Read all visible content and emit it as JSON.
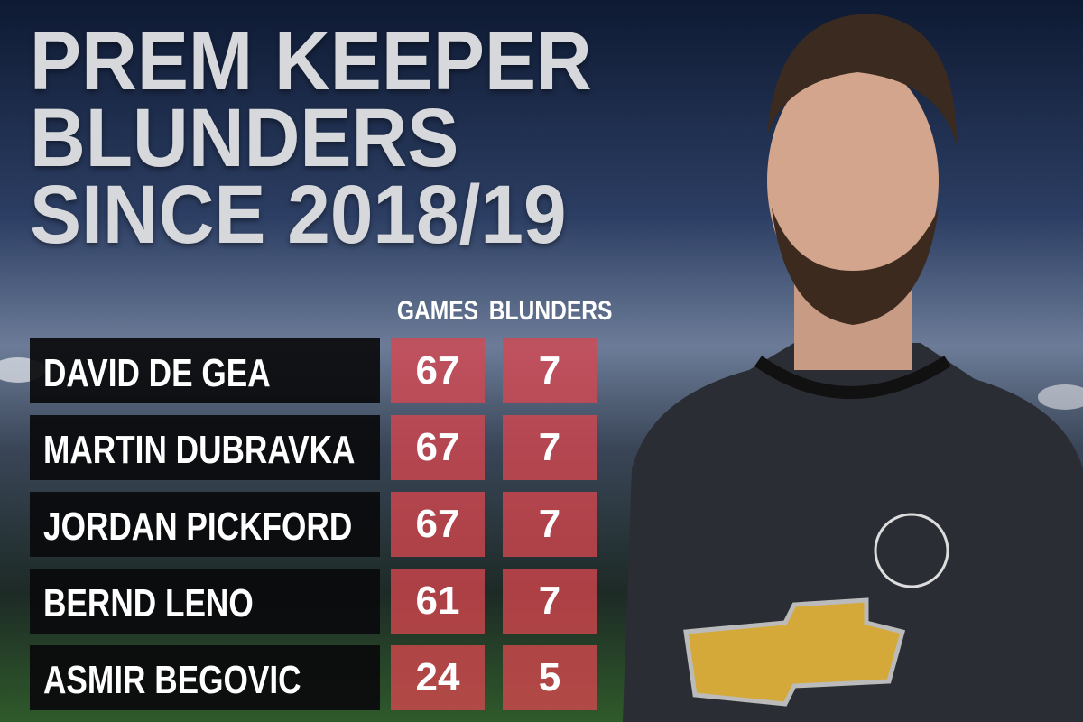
{
  "title": {
    "lines": [
      "PREM KEEPER",
      "BLUNDERS",
      "SINCE 2018/19"
    ]
  },
  "table": {
    "headers": [
      "GAMES",
      "BLUNDERS"
    ],
    "rows": [
      [
        "DAVID DE GEA",
        67,
        7
      ],
      [
        "MARTIN DUBRAVKA",
        67,
        7
      ],
      [
        "JORDAN PICKFORD",
        67,
        7
      ],
      [
        "BERND LENO",
        61,
        7
      ],
      [
        "ASMIR BEGOVIC",
        24,
        5
      ]
    ]
  }
}
